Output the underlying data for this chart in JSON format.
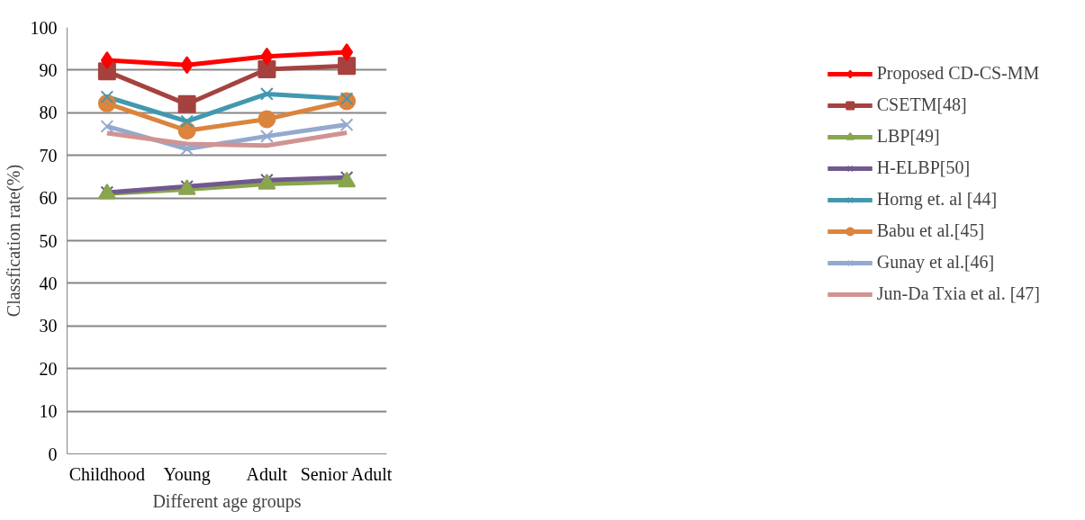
{
  "chart_data": {
    "type": "line",
    "xlabel": "Different age groups",
    "ylabel": "Classfication rate(%)",
    "categories": [
      "Childhood",
      "Young",
      "Adult",
      "Senior Adult"
    ],
    "ylim": [
      0,
      100
    ],
    "yticks": [
      0,
      10,
      20,
      30,
      40,
      50,
      60,
      70,
      80,
      90,
      100
    ],
    "grid": "y",
    "legend": "right",
    "line_style": "solid",
    "series": [
      {
        "name": "Proposed CD-CS-MM",
        "color": "#ff0000",
        "marker": "diamond",
        "values": [
          92.3,
          91.2,
          93.2,
          94.2
        ]
      },
      {
        "name": "CSETM[48]",
        "color": "#a5423f",
        "marker": "square",
        "values": [
          89.7,
          82.0,
          90.2,
          91.0
        ]
      },
      {
        "name": "LBP[49]",
        "color": "#89a54e",
        "marker": "triangle",
        "values": [
          61.0,
          62.0,
          63.3,
          63.8
        ]
      },
      {
        "name": "H-ELBP[50]",
        "color": "#71588f",
        "marker": "cross",
        "values": [
          61.3,
          62.7,
          64.2,
          64.8
        ]
      },
      {
        "name": "Horng et. al [44]",
        "color": "#4198af",
        "marker": "cross",
        "values": [
          83.7,
          78.0,
          84.4,
          83.3
        ]
      },
      {
        "name": "Babu et al.[45]",
        "color": "#db843d",
        "marker": "circle",
        "values": [
          82.2,
          75.8,
          78.5,
          82.7
        ]
      },
      {
        "name": "Gunay et al.[46]",
        "color": "#93a9cf",
        "marker": "cross",
        "values": [
          76.8,
          71.5,
          74.5,
          77.2
        ]
      },
      {
        "name": "Jun-Da Txia et al. [47]",
        "color": "#d19392",
        "marker": "none",
        "values": [
          75.2,
          72.7,
          72.3,
          75.3
        ]
      }
    ]
  }
}
